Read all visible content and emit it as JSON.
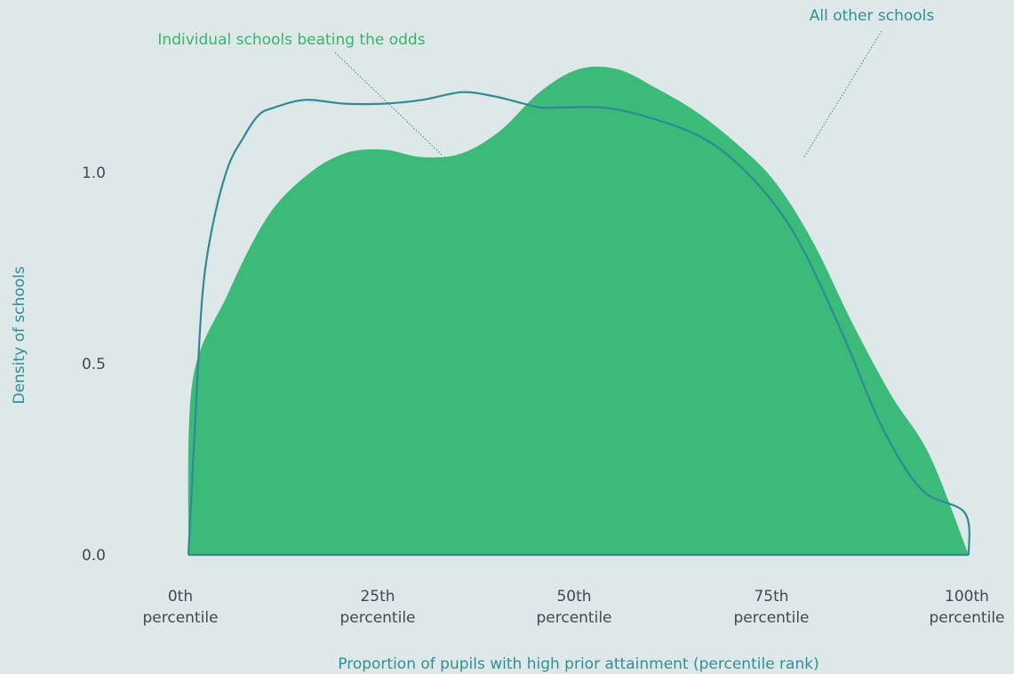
{
  "chart_data": {
    "type": "area",
    "title": "",
    "xlabel": "Proportion of pupils with high prior attainment (percentile rank)",
    "ylabel": "Density of schools",
    "xlim": [
      0,
      100
    ],
    "ylim": [
      0,
      1.0
    ],
    "y_ticks": [
      {
        "value": 0.0,
        "label": "0.0"
      },
      {
        "value": 0.5,
        "label": "0.5"
      },
      {
        "value": 1.0,
        "label": "1.0"
      }
    ],
    "x_ticks": [
      {
        "value": 0,
        "line1": "0th",
        "line2": "percentile"
      },
      {
        "value": 25,
        "line1": "25th",
        "line2": "percentile"
      },
      {
        "value": 50,
        "line1": "50th",
        "line2": "percentile"
      },
      {
        "value": 75,
        "line1": "75th",
        "line2": "percentile"
      },
      {
        "value": 100,
        "line1": "100th",
        "line2": "percentile"
      }
    ],
    "grid": false,
    "series": [
      {
        "name": "Individual schools beating the odds",
        "style": "filled-area",
        "color": "#3bba79",
        "x": [
          0,
          0.5,
          5,
          10,
          15,
          20,
          25,
          30,
          35,
          40,
          45,
          50,
          55,
          60,
          65,
          70,
          75,
          80,
          85,
          90,
          95,
          100
        ],
        "y": [
          0.0,
          0.45,
          0.68,
          0.88,
          0.99,
          1.05,
          1.06,
          1.04,
          1.05,
          1.11,
          1.21,
          1.27,
          1.27,
          1.22,
          1.16,
          1.08,
          0.98,
          0.82,
          0.61,
          0.42,
          0.26,
          0.0
        ]
      },
      {
        "name": "All other schools",
        "style": "line",
        "color": "#2f8a95",
        "x": [
          0,
          1,
          1.8,
          3,
          5,
          7,
          9,
          11,
          15,
          20,
          25,
          30,
          35,
          39,
          43,
          45,
          48,
          53,
          58,
          65,
          70,
          75,
          79,
          84,
          89,
          94,
          99.5,
          100
        ],
        "y": [
          0.0,
          0.4,
          0.68,
          0.85,
          1.01,
          1.09,
          1.15,
          1.17,
          1.19,
          1.18,
          1.18,
          1.19,
          1.21,
          1.2,
          1.18,
          1.17,
          1.17,
          1.17,
          1.15,
          1.1,
          1.03,
          0.92,
          0.79,
          0.57,
          0.33,
          0.17,
          0.11,
          0.0
        ]
      }
    ],
    "annotations": [
      {
        "text": "Individual schools beating the odds",
        "series": 0
      },
      {
        "text": "All other schools",
        "series": 1
      }
    ]
  }
}
